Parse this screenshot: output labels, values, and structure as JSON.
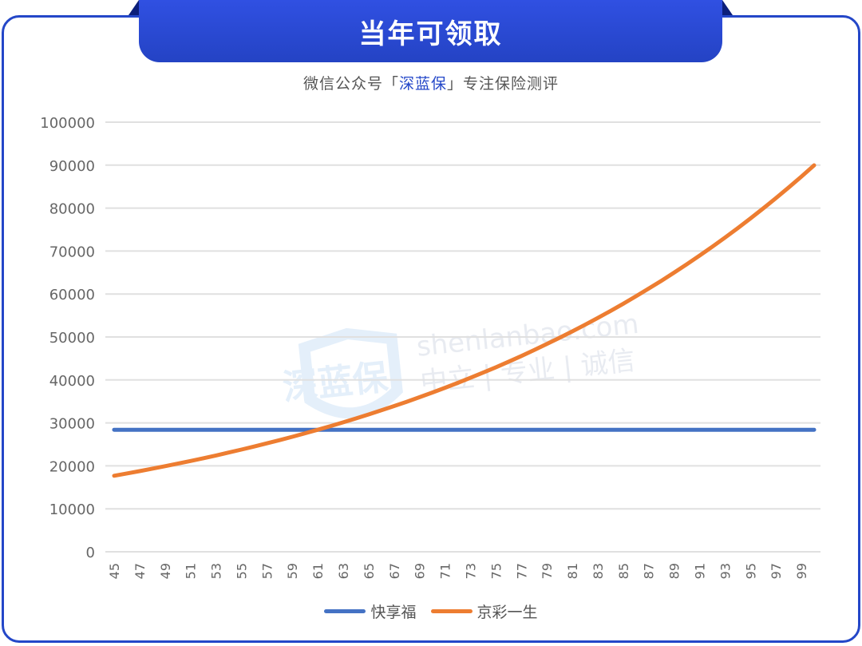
{
  "header": {
    "title": "当年可领取",
    "subtitle_prefix": "微信公众号「",
    "subtitle_brand": "深蓝保",
    "subtitle_suffix": "」专注保险测评"
  },
  "watermark": {
    "logo_text": "深蓝保",
    "domain": "shenlanbao.com",
    "slogan": "中立 | 专业 | 诚信"
  },
  "colors": {
    "frame": "#2447c8",
    "series_1": "#4472c4",
    "series_2": "#ed7d31",
    "grid": "#e0e0e0"
  },
  "legend": {
    "items": [
      {
        "label": "快享福",
        "color": "#4472c4"
      },
      {
        "label": "京彩一生",
        "color": "#ed7d31"
      }
    ]
  },
  "chart_data": {
    "type": "line",
    "title": "当年可领取",
    "subtitle": "微信公众号「深蓝保」专注保险测评",
    "xlabel": "",
    "ylabel": "",
    "ylim": [
      0,
      100000
    ],
    "yticks": [
      0,
      10000,
      20000,
      30000,
      40000,
      50000,
      60000,
      70000,
      80000,
      90000,
      100000
    ],
    "x_tick_labels": [
      "45",
      "47",
      "49",
      "51",
      "53",
      "55",
      "57",
      "59",
      "61",
      "63",
      "65",
      "67",
      "69",
      "71",
      "73",
      "75",
      "77",
      "79",
      "81",
      "83",
      "85",
      "87",
      "89",
      "91",
      "93",
      "95",
      "97",
      "99"
    ],
    "x": [
      45,
      46,
      47,
      48,
      49,
      50,
      51,
      52,
      53,
      54,
      55,
      56,
      57,
      58,
      59,
      60,
      61,
      62,
      63,
      64,
      65,
      66,
      67,
      68,
      69,
      70,
      71,
      72,
      73,
      74,
      75,
      76,
      77,
      78,
      79,
      80,
      81,
      82,
      83,
      84,
      85,
      86,
      87,
      88,
      89,
      90,
      91,
      92,
      93,
      94,
      95,
      96,
      97,
      98,
      99,
      100
    ],
    "grid": true,
    "legend_position": "bottom",
    "series": [
      {
        "name": "快享福",
        "color": "#4472c4",
        "values": [
          28400,
          28400,
          28400,
          28400,
          28400,
          28400,
          28400,
          28400,
          28400,
          28400,
          28400,
          28400,
          28400,
          28400,
          28400,
          28400,
          28400,
          28400,
          28400,
          28400,
          28400,
          28400,
          28400,
          28400,
          28400,
          28400,
          28400,
          28400,
          28400,
          28400,
          28400,
          28400,
          28400,
          28400,
          28400,
          28400,
          28400,
          28400,
          28400,
          28400,
          28400,
          28400,
          28400,
          28400,
          28400,
          28400,
          28400,
          28400,
          28400,
          28400,
          28400,
          28400,
          28400,
          28400,
          28400,
          28400
        ]
      },
      {
        "name": "京彩一生",
        "color": "#ed7d31",
        "values": [
          17700,
          18231,
          18778,
          19341,
          19922,
          20519,
          21135,
          21769,
          22422,
          23095,
          23787,
          24501,
          25236,
          25993,
          26773,
          27576,
          28404,
          29256,
          30134,
          31038,
          31969,
          32928,
          33916,
          34933,
          35981,
          37061,
          38173,
          39318,
          40497,
          41712,
          42964,
          44252,
          45580,
          46948,
          48356,
          49807,
          51301,
          52840,
          54425,
          56058,
          57740,
          59472,
          61256,
          63094,
          64987,
          66936,
          68944,
          71013,
          73143,
          75337,
          77598,
          79925,
          82323,
          84793,
          87337,
          89957
        ]
      }
    ]
  }
}
